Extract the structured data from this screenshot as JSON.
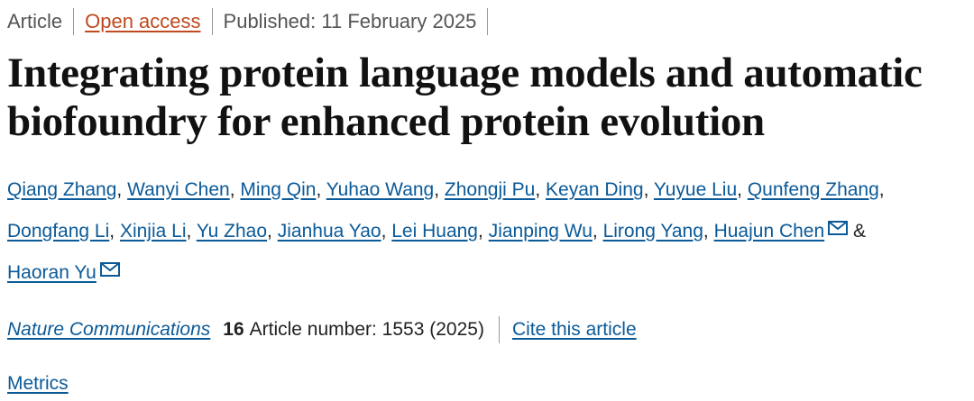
{
  "header": {
    "article_type": "Article",
    "access": "Open access",
    "published": "Published: 11 February 2025"
  },
  "title": "Integrating protein language models and automatic biofoundry for enhanced protein evolution",
  "authors": {
    "separator": ",",
    "conjunction": "&",
    "list": [
      {
        "name": "Qiang Zhang",
        "email": false
      },
      {
        "name": "Wanyi Chen",
        "email": false
      },
      {
        "name": "Ming Qin",
        "email": false
      },
      {
        "name": "Yuhao Wang",
        "email": false
      },
      {
        "name": "Zhongji Pu",
        "email": false
      },
      {
        "name": "Keyan Ding",
        "email": false
      },
      {
        "name": "Yuyue Liu",
        "email": false
      },
      {
        "name": "Qunfeng Zhang",
        "email": false
      },
      {
        "name": "Dongfang Li",
        "email": false
      },
      {
        "name": "Xinjia Li",
        "email": false
      },
      {
        "name": "Yu Zhao",
        "email": false
      },
      {
        "name": "Jianhua Yao",
        "email": false
      },
      {
        "name": "Lei Huang",
        "email": false
      },
      {
        "name": "Jianping Wu",
        "email": false
      },
      {
        "name": "Lirong Yang",
        "email": false
      },
      {
        "name": "Huajun Chen",
        "email": true
      },
      {
        "name": "Haoran Yu",
        "email": true
      }
    ]
  },
  "citation": {
    "journal": "Nature Communications",
    "volume": "16",
    "details": "Article number: 1553 (2025)",
    "cite_link": "Cite this article"
  },
  "metrics": "Metrics"
}
